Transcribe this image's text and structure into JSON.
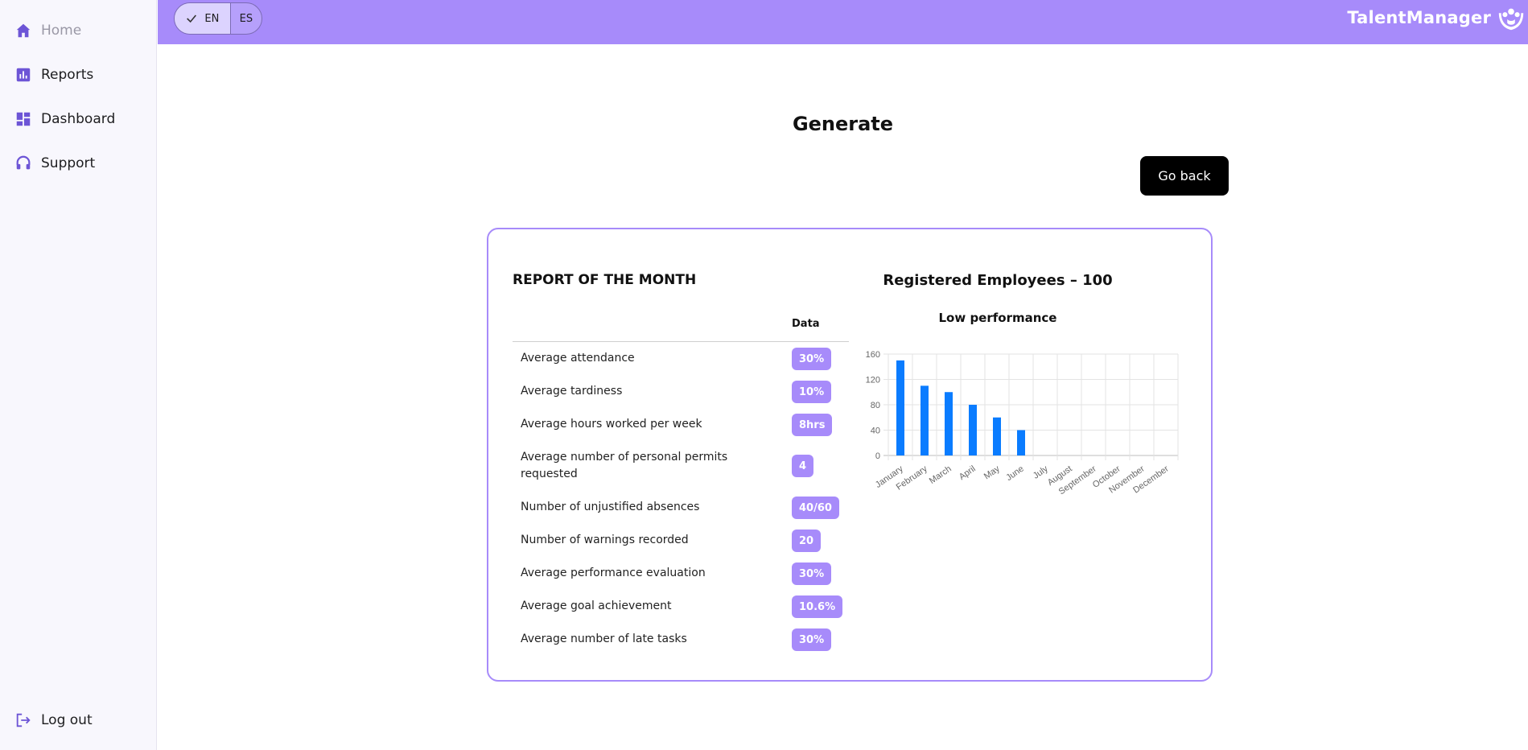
{
  "sidebar": {
    "items": [
      {
        "label": "Home",
        "icon": "home-icon"
      },
      {
        "label": "Reports",
        "icon": "bar-chart-icon"
      },
      {
        "label": "Dashboard",
        "icon": "dashboard-icon"
      },
      {
        "label": "Support",
        "icon": "headset-icon"
      }
    ],
    "logout": {
      "label": "Log out",
      "icon": "logout-icon"
    }
  },
  "topbar": {
    "language": {
      "options": [
        "EN",
        "ES"
      ],
      "selected": "EN"
    },
    "brand": "TalentManager"
  },
  "main": {
    "title": "Generate",
    "back_button": "Go back"
  },
  "report": {
    "title": "REPORT OF THE MONTH",
    "column_header": "Data",
    "rows": [
      {
        "label": "Average attendance",
        "value": "30%"
      },
      {
        "label": "Average tardiness",
        "value": "10%"
      },
      {
        "label": "Average hours worked per week",
        "value": "8hrs"
      },
      {
        "label": "Average number of personal permits requested",
        "value": "4"
      },
      {
        "label": "Number of unjustified absences",
        "value": "40/60"
      },
      {
        "label": "Number of warnings recorded",
        "value": "20"
      },
      {
        "label": "Average performance evaluation",
        "value": "30%"
      },
      {
        "label": "Average goal achievement",
        "value": "10.6%"
      },
      {
        "label": "Average number of late tasks",
        "value": "30%"
      }
    ]
  },
  "employees": {
    "title": "Registered Employees – 100"
  },
  "colors": {
    "accent": "#a78bfa",
    "bar": "#0a7cff",
    "sidebar_icon": "#6d55d6"
  },
  "chart_data": {
    "type": "bar",
    "title": "Low performance",
    "categories": [
      "January",
      "February",
      "March",
      "April",
      "May",
      "June",
      "July",
      "August",
      "September",
      "October",
      "November",
      "December"
    ],
    "values": [
      150,
      110,
      100,
      80,
      60,
      40,
      null,
      null,
      null,
      null,
      null,
      null
    ],
    "yticks": [
      0,
      40,
      80,
      120,
      160
    ],
    "ylim": [
      0,
      160
    ],
    "grid": true,
    "legend": false
  }
}
